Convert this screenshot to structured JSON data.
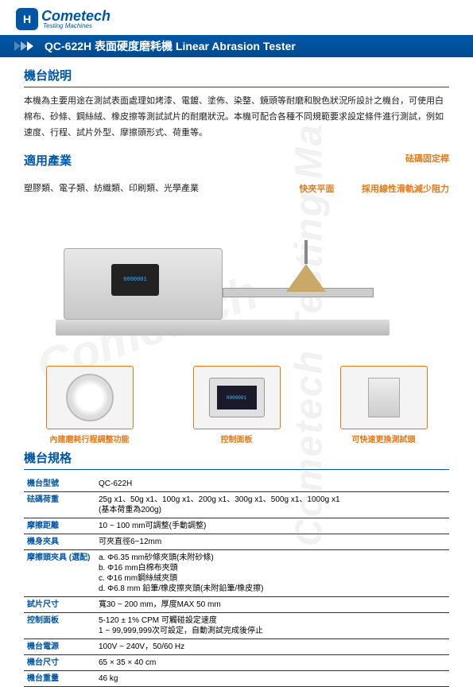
{
  "logo": {
    "name": "Cometech",
    "sub": "Testing Machines"
  },
  "titleBar": "QC-622H  表面硬度磨耗機   Linear Abrasion Tester",
  "sections": {
    "descTitle": "機台說明",
    "descBody": "本機為主要用途在測試表面處理如烤漆、電鍍、塗佈、染整、鏡頭等耐磨和脫色狀況所設計之機台，可使用白棉布、砂條、鋼絲絨、橡皮擦等測試試片的耐磨狀況。本機可配合各種不同規範要求設定條件進行測試，例如速度、行程、試片外型、摩擦頭形式、荷重等。",
    "industryTitle": "適用產業",
    "industryBody": "塑膠類、電子類、紡織類、印刷類、光學產業",
    "specTitle": "機台規格"
  },
  "callouts": {
    "top": "砝碼固定桿",
    "left": "快夾平面",
    "right": "採用線性滑軌減少阻力"
  },
  "details": [
    {
      "label": "內建磨耗行程調整功能"
    },
    {
      "label": "控制面板"
    },
    {
      "label": "可快速更換測試頭"
    }
  ],
  "specs": [
    {
      "k": "機台型號",
      "v": "QC-622H"
    },
    {
      "k": "砝碼荷重",
      "v": "25g x1、50g x1、100g x1、200g x1、300g x1、500g x1、1000g x1\n(基本荷重為200g)"
    },
    {
      "k": "摩擦距離",
      "v": "10 ~ 100 mm可調整(手動調整)"
    },
    {
      "k": "機身夾具",
      "v": "可夾直徑6~12mm"
    },
    {
      "k": "摩擦頭夾具 (選配)",
      "v": "a. Φ6.35 mm砂條夾頭(未附砂條)\nb. Φ16 mm白棉布夾頭\nc. Φ16 mm鋼絲絨夾頭\nd. Φ6.8 mm 鉛筆/橡皮擦夾頭(未附鉛筆/橡皮擦)"
    },
    {
      "k": "試片尺寸",
      "v": "寬30 ~ 200 mm，厚度MAX 50 mm"
    },
    {
      "k": "控制面板",
      "v": "5-120 ± 1% CPM 可觸碰設定速度\n1 ~ 99,999,999次可設定，自動測試完成後停止"
    },
    {
      "k": "機台電源",
      "v": "100V ~ 240V，50/60 Hz"
    },
    {
      "k": "機台尺寸",
      "v": "65 × 35 × 40 cm"
    },
    {
      "k": "機台重量",
      "v": "46 kg"
    }
  ],
  "colors": {
    "primary": "#0055a5",
    "accent": "#e67817"
  }
}
